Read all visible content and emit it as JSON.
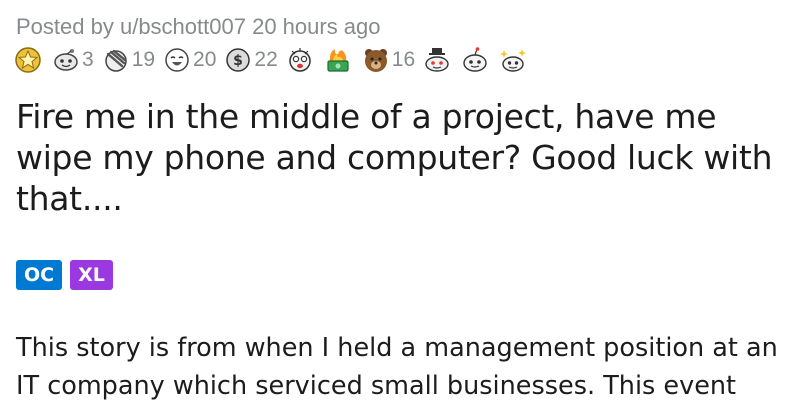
{
  "post": {
    "posted_by_prefix": "Posted by",
    "author": "u/bschott007",
    "time_ago": "20 hours ago",
    "title": "Fire me in the middle of a project, have me wipe my phone and computer? Good luck with that....",
    "flairs": [
      {
        "label": "OC",
        "color": "#0079d3"
      },
      {
        "label": "XL",
        "color": "#9b39e0"
      }
    ],
    "body_visible": "This story is from when I held a management position at an IT company which serviced small businesses. This event"
  },
  "awards": [
    {
      "icon": "silver-star-award-icon",
      "count": ""
    },
    {
      "icon": "wholesome-snoo-award-icon",
      "count": "3"
    },
    {
      "icon": "facepalm-award-icon",
      "count": "19"
    },
    {
      "icon": "laughing-face-award-icon",
      "count": "20"
    },
    {
      "icon": "money-face-award-icon",
      "count": "22"
    },
    {
      "icon": "shocked-face-award-icon",
      "count": ""
    },
    {
      "icon": "burning-cash-award-icon",
      "count": ""
    },
    {
      "icon": "bear-award-icon",
      "count": "16"
    },
    {
      "icon": "snoo-hat-award-icon",
      "count": ""
    },
    {
      "icon": "snoo-hug-award-icon",
      "count": ""
    },
    {
      "icon": "snoo-sparkle-award-icon",
      "count": ""
    }
  ]
}
